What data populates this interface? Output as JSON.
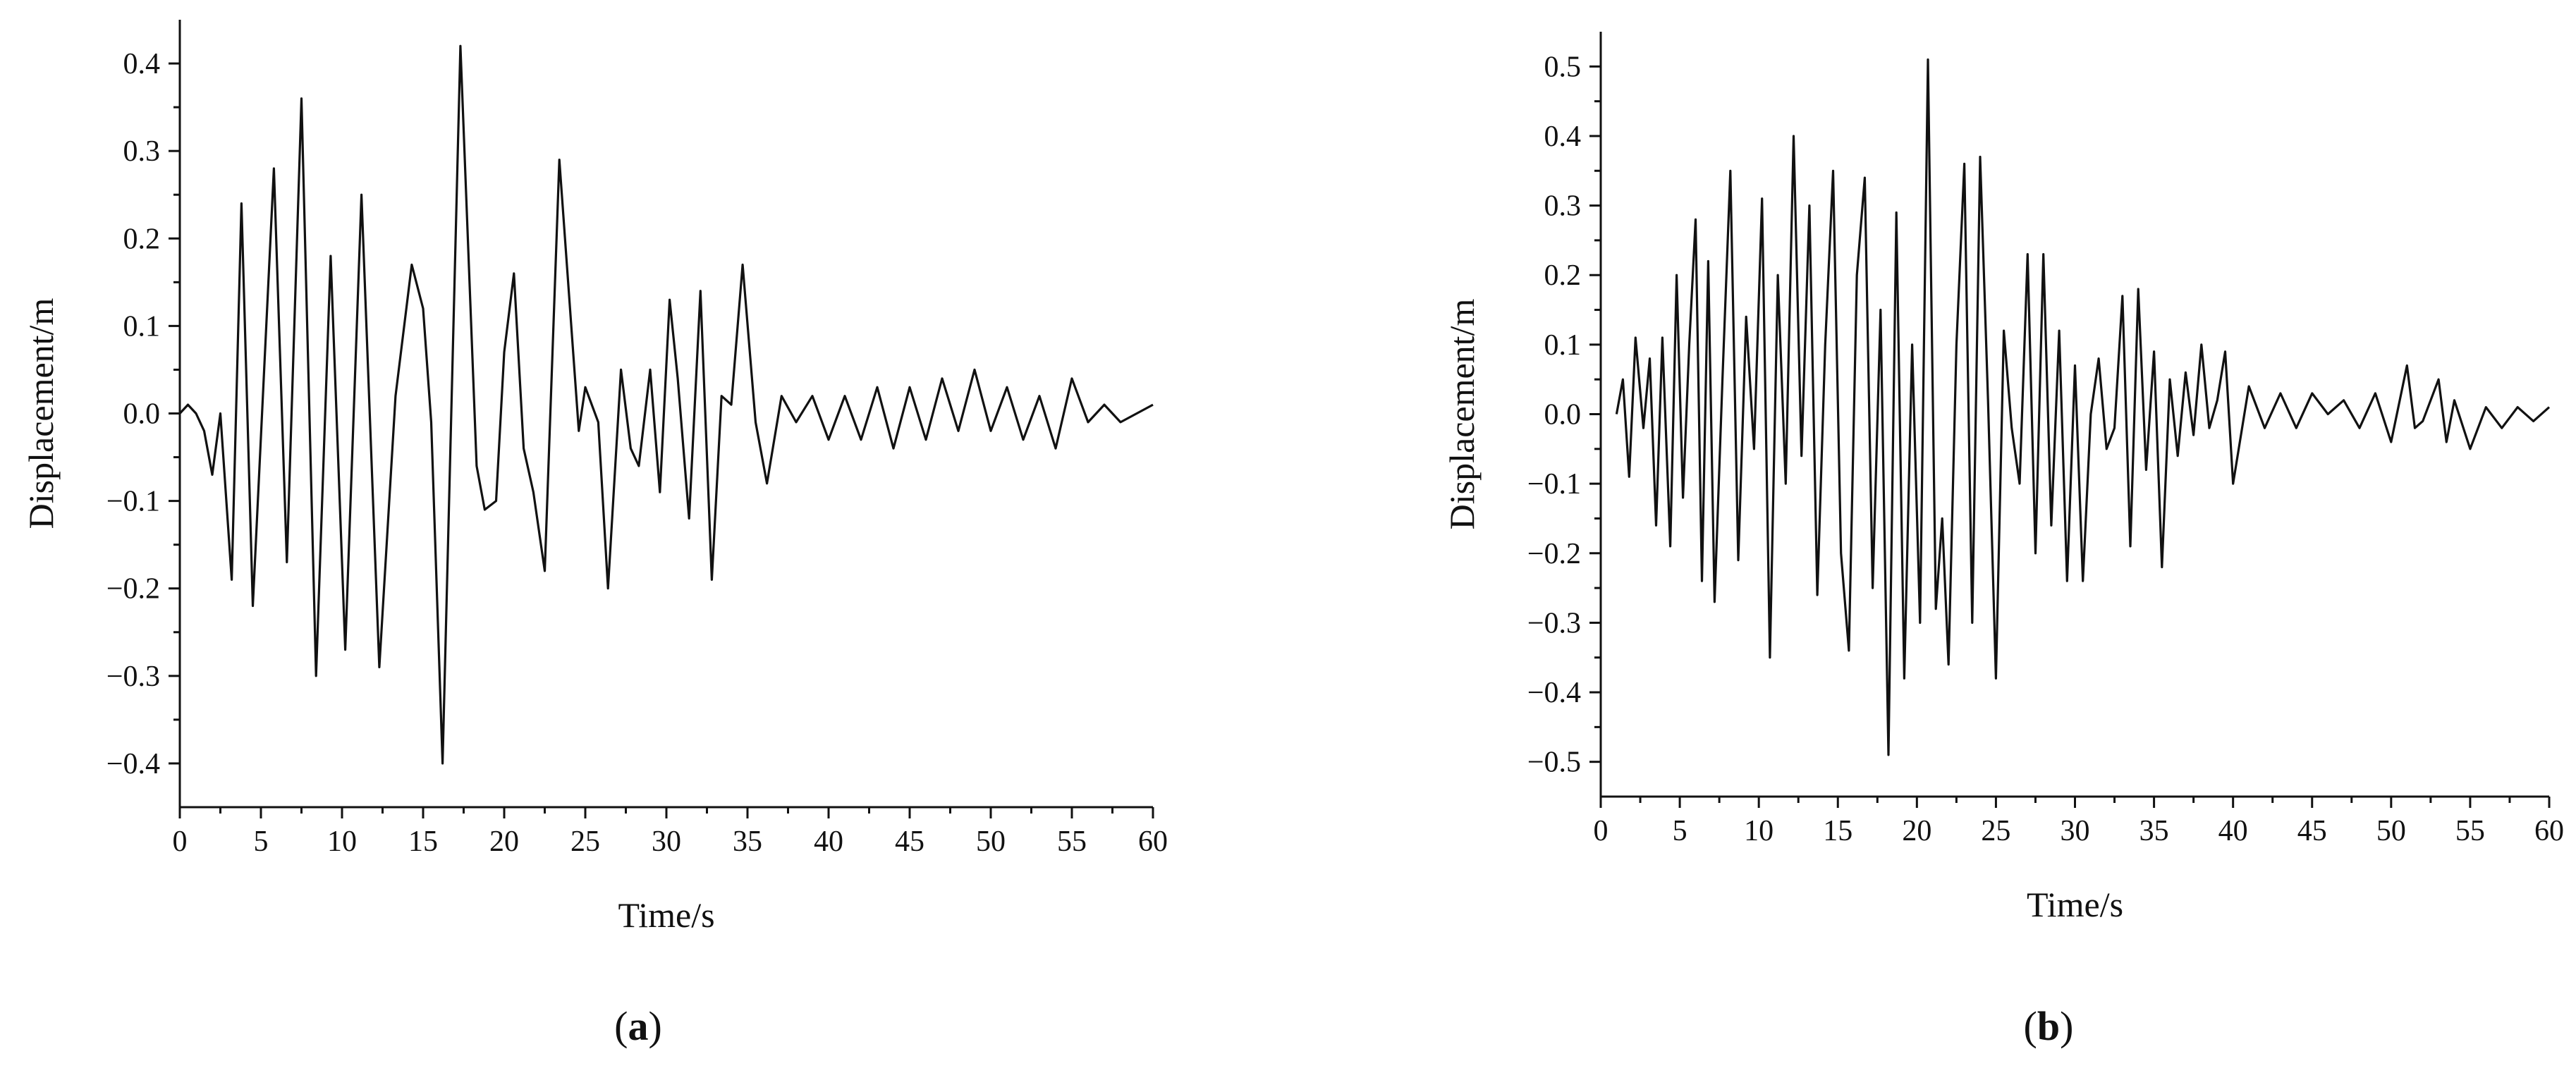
{
  "chart_data": [
    {
      "type": "line",
      "panel_label": "a",
      "xlabel": "Time/s",
      "ylabel": "Displacement/m",
      "xlim": [
        0,
        60
      ],
      "ylim": [
        -0.45,
        0.45
      ],
      "x_ticks": [
        0,
        5,
        10,
        15,
        20,
        25,
        30,
        35,
        40,
        45,
        50,
        55,
        60
      ],
      "x_tick_labels": [
        "0",
        "5",
        "10",
        "15",
        "20",
        "25",
        "30",
        "35",
        "40",
        "45",
        "50",
        "55",
        "60"
      ],
      "y_ticks": [
        -0.4,
        -0.3,
        -0.2,
        -0.1,
        0.0,
        0.1,
        0.2,
        0.3,
        0.4
      ],
      "y_tick_labels": [
        "−0.4",
        "−0.3",
        "−0.2",
        "−0.1",
        "0.0",
        "0.1",
        "0.2",
        "0.3",
        "0.4"
      ],
      "grid": false,
      "series": [
        {
          "x": [
            0,
            0.5,
            1,
            1.5,
            2.0,
            2.5,
            3.2,
            3.8,
            4.5,
            5.2,
            5.8,
            6.6,
            7.5,
            8.4,
            9.3,
            10.2,
            11.2,
            12.3,
            13.3,
            14.3,
            15.0,
            15.5,
            16.2,
            17.3,
            18.3,
            18.8,
            19.5,
            20.0,
            20.6,
            21.2,
            21.8,
            22.5,
            23.4,
            24.6,
            25.0,
            25.8,
            26.4,
            27.2,
            27.8,
            28.3,
            29.0,
            29.6,
            30.2,
            30.7,
            31.4,
            32.1,
            32.8,
            33.4,
            34.0,
            34.7,
            35.5,
            36.2,
            37.1,
            38.0,
            39.0,
            40.0,
            41.0,
            42.0,
            43.0,
            44.0,
            45.0,
            46.0,
            47.0,
            48.0,
            49.0,
            50.0,
            51.0,
            52.0,
            53.0,
            54.0,
            55.0,
            56.0,
            57.0,
            58.0,
            59.0,
            60.0
          ],
          "y": [
            0.0,
            0.01,
            0.0,
            -0.02,
            -0.07,
            0.0,
            -0.19,
            0.24,
            -0.22,
            0.05,
            0.28,
            -0.17,
            0.36,
            -0.3,
            0.18,
            -0.27,
            0.25,
            -0.29,
            0.02,
            0.17,
            0.12,
            -0.01,
            -0.4,
            0.42,
            -0.06,
            -0.11,
            -0.1,
            0.07,
            0.16,
            -0.04,
            -0.09,
            -0.18,
            0.29,
            -0.02,
            0.03,
            -0.01,
            -0.2,
            0.05,
            -0.04,
            -0.06,
            0.05,
            -0.09,
            0.13,
            0.04,
            -0.12,
            0.14,
            -0.19,
            0.02,
            0.01,
            0.17,
            -0.01,
            -0.08,
            0.02,
            -0.01,
            0.02,
            -0.03,
            0.02,
            -0.03,
            0.03,
            -0.04,
            0.03,
            -0.03,
            0.04,
            -0.02,
            0.05,
            -0.02,
            0.03,
            -0.03,
            0.02,
            -0.04,
            0.04,
            -0.01,
            0.01,
            -0.01,
            0.0,
            0.01
          ]
        }
      ]
    },
    {
      "type": "line",
      "panel_label": "b",
      "xlabel": "Time/s",
      "ylabel": "Displacement/m",
      "xlim": [
        0,
        60
      ],
      "ylim": [
        -0.55,
        0.55
      ],
      "x_ticks": [
        0,
        5,
        10,
        15,
        20,
        25,
        30,
        35,
        40,
        45,
        50,
        55,
        60
      ],
      "x_tick_labels": [
        "0",
        "5",
        "10",
        "15",
        "20",
        "25",
        "30",
        "35",
        "40",
        "45",
        "50",
        "55",
        "60"
      ],
      "y_ticks": [
        -0.5,
        -0.4,
        -0.3,
        -0.2,
        -0.1,
        0.0,
        0.1,
        0.2,
        0.3,
        0.4,
        0.5
      ],
      "y_tick_labels": [
        "−0.5",
        "−0.4",
        "−0.3",
        "−0.2",
        "−0.1",
        "0.0",
        "0.1",
        "0.2",
        "0.3",
        "0.4",
        "0.5"
      ],
      "grid": false,
      "series": [
        {
          "x": [
            1.0,
            1.4,
            1.8,
            2.2,
            2.7,
            3.1,
            3.5,
            3.9,
            4.4,
            4.8,
            5.2,
            5.6,
            6.0,
            6.4,
            6.8,
            7.2,
            7.7,
            8.2,
            8.7,
            9.2,
            9.7,
            10.2,
            10.7,
            11.2,
            11.7,
            12.2,
            12.7,
            13.2,
            13.7,
            14.2,
            14.7,
            15.2,
            15.7,
            16.2,
            16.7,
            17.2,
            17.7,
            18.2,
            18.7,
            19.2,
            19.7,
            20.2,
            20.7,
            21.2,
            21.6,
            22.0,
            22.5,
            23.0,
            23.5,
            24.0,
            24.5,
            25.0,
            25.5,
            26.0,
            26.5,
            27.0,
            27.5,
            28.0,
            28.5,
            29.0,
            29.5,
            30.0,
            30.5,
            31.0,
            31.5,
            32.0,
            32.5,
            33.0,
            33.5,
            34.0,
            34.5,
            35.0,
            35.5,
            36.0,
            36.5,
            37.0,
            37.5,
            38.0,
            38.5,
            39.0,
            39.5,
            40.0,
            41.0,
            42.0,
            43.0,
            44.0,
            45.0,
            46.0,
            47.0,
            48.0,
            49.0,
            50.0,
            51.0,
            51.5,
            52.0,
            53.0,
            53.5,
            54.0,
            55.0,
            56.0,
            57.0,
            58.0,
            59.0,
            60.0
          ],
          "y": [
            0.0,
            0.05,
            -0.09,
            0.11,
            -0.02,
            0.08,
            -0.16,
            0.11,
            -0.19,
            0.2,
            -0.12,
            0.1,
            0.28,
            -0.24,
            0.22,
            -0.27,
            0.05,
            0.35,
            -0.21,
            0.14,
            -0.05,
            0.31,
            -0.35,
            0.2,
            -0.1,
            0.4,
            -0.06,
            0.3,
            -0.26,
            0.1,
            0.35,
            -0.2,
            -0.34,
            0.2,
            0.34,
            -0.25,
            0.15,
            -0.49,
            0.29,
            -0.38,
            0.1,
            -0.3,
            0.51,
            -0.28,
            -0.15,
            -0.36,
            0.1,
            0.36,
            -0.3,
            0.37,
            0.02,
            -0.38,
            0.12,
            -0.02,
            -0.1,
            0.23,
            -0.2,
            0.23,
            -0.16,
            0.12,
            -0.24,
            0.07,
            -0.24,
            0.0,
            0.08,
            -0.05,
            -0.02,
            0.17,
            -0.19,
            0.18,
            -0.08,
            0.09,
            -0.22,
            0.05,
            -0.06,
            0.06,
            -0.03,
            0.1,
            -0.02,
            0.02,
            0.09,
            -0.1,
            0.04,
            -0.02,
            0.03,
            -0.02,
            0.03,
            0.0,
            0.02,
            -0.02,
            0.03,
            -0.04,
            0.07,
            -0.02,
            -0.01,
            0.05,
            -0.04,
            0.02,
            -0.05,
            0.01,
            -0.02,
            0.01,
            -0.01,
            0.01
          ]
        }
      ]
    }
  ]
}
